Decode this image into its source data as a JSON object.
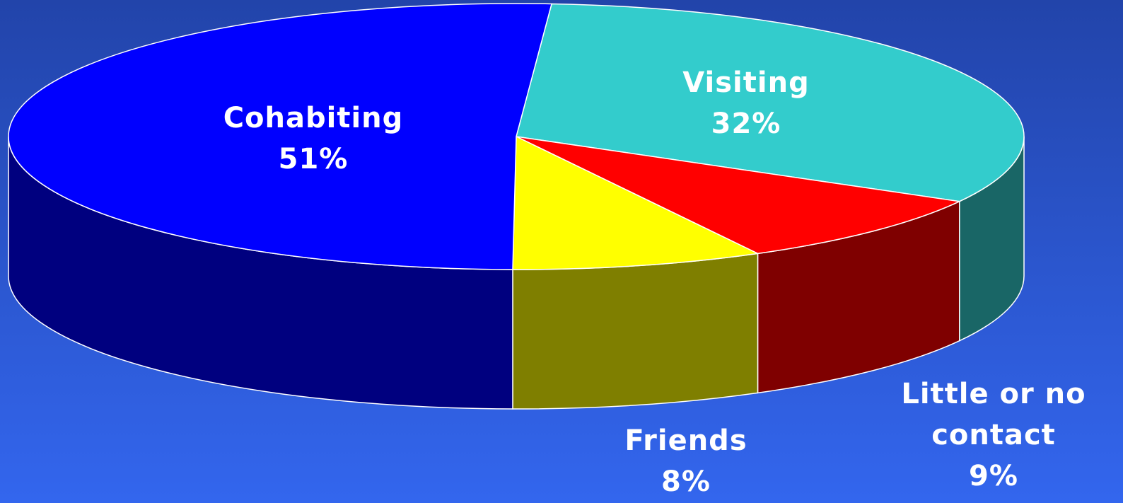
{
  "chart_data": {
    "type": "pie3d",
    "categories": [
      "Visiting",
      "Little or no contact",
      "Friends",
      "Cohabiting"
    ],
    "values": [
      32,
      9,
      8,
      51
    ],
    "value_labels": [
      "32%",
      "9%",
      "8%",
      "51%"
    ],
    "colors": [
      "#33cccc",
      "#ff0000",
      "#ffff00",
      "#0000ff"
    ]
  }
}
